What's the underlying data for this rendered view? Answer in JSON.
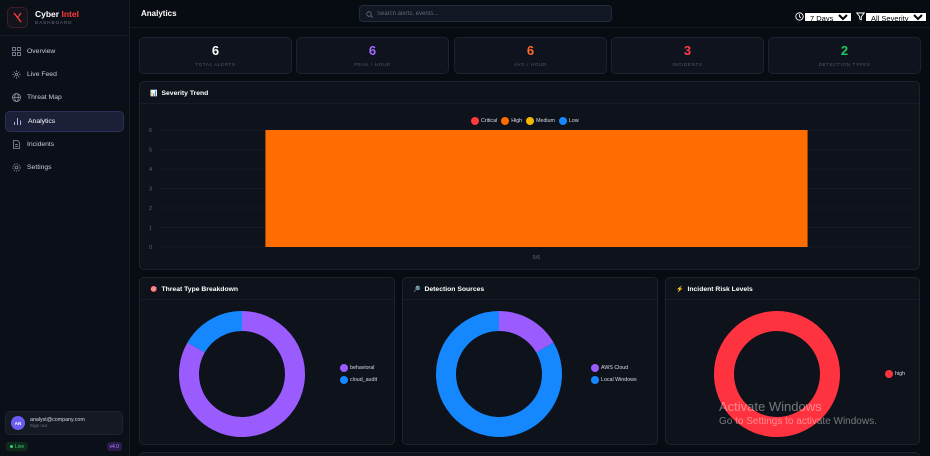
{
  "brand": {
    "name_main": "Cyber",
    "name_accent": "Intel",
    "sub": "DASHBOARD"
  },
  "sidebar": {
    "items": [
      {
        "label": "Overview",
        "icon": "grid-icon"
      },
      {
        "label": "Live Feed",
        "icon": "radar-icon"
      },
      {
        "label": "Threat Map",
        "icon": "globe-icon"
      },
      {
        "label": "Analytics",
        "icon": "bar-chart-icon",
        "active": true
      },
      {
        "label": "Incidents",
        "icon": "document-icon"
      },
      {
        "label": "Settings",
        "icon": "gear-icon"
      }
    ],
    "user": {
      "initials": "AN",
      "email": "analyst@company.com",
      "action": "Sign out"
    },
    "status": "Live",
    "version": "v4.0"
  },
  "header": {
    "title": "Analytics",
    "search_placeholder": "Search alerts, events...",
    "time_filter": "7 Days",
    "severity_filter": "All Severity"
  },
  "stats": [
    {
      "value": "6",
      "label": "TOTAL ALERTS",
      "color": "#ffffff"
    },
    {
      "value": "6",
      "label": "PEAK / HOUR",
      "color": "#a66bff"
    },
    {
      "value": "6",
      "label": "AVG / HOUR",
      "color": "#ff6a2b"
    },
    {
      "value": "3",
      "label": "INCIDENTS",
      "color": "#ff3b4a"
    },
    {
      "value": "2",
      "label": "DETECTION TYPES",
      "color": "#22c55e"
    }
  ],
  "panels": {
    "trend": {
      "title": "Severity Trend",
      "icon": "chart-icon"
    },
    "threat_type": {
      "title": "Threat Type Breakdown",
      "icon": "target-icon"
    },
    "sources": {
      "title": "Detection Sources",
      "icon": "magnifier-icon"
    },
    "risk": {
      "title": "Incident Risk Levels",
      "icon": "lightning-icon"
    }
  },
  "chart_data": [
    {
      "type": "bar",
      "categories": [
        "5/6"
      ],
      "series": [
        {
          "name": "Critical",
          "color": "#ff3b3b",
          "values": [
            0
          ]
        },
        {
          "name": "High",
          "color": "#ff6d00",
          "values": [
            6
          ]
        },
        {
          "name": "Medium",
          "color": "#f5b800",
          "values": [
            0
          ]
        },
        {
          "name": "Low",
          "color": "#1688ff",
          "values": [
            0
          ]
        }
      ],
      "yticks": [
        "0",
        "1",
        "2",
        "3",
        "4",
        "5",
        "6"
      ],
      "ylim": [
        0,
        6
      ],
      "legend": "top-center",
      "grid": true
    },
    {
      "type": "pie",
      "labels": [
        "behavioral",
        "cloud_audit"
      ],
      "values": [
        5,
        1
      ],
      "colors": [
        "#9b5cff",
        "#1688ff"
      ],
      "legend": "right"
    },
    {
      "type": "pie",
      "labels": [
        "AWS Cloud",
        "Local Windows"
      ],
      "values": [
        1,
        5
      ],
      "colors": [
        "#9b5cff",
        "#1688ff"
      ],
      "legend": "right"
    },
    {
      "type": "pie",
      "labels": [
        "high"
      ],
      "values": [
        3
      ],
      "colors": [
        "#ff3340"
      ],
      "legend": "right"
    }
  ],
  "watermark": {
    "line1": "Activate Windows",
    "line2": "Go to Settings to activate Windows."
  }
}
